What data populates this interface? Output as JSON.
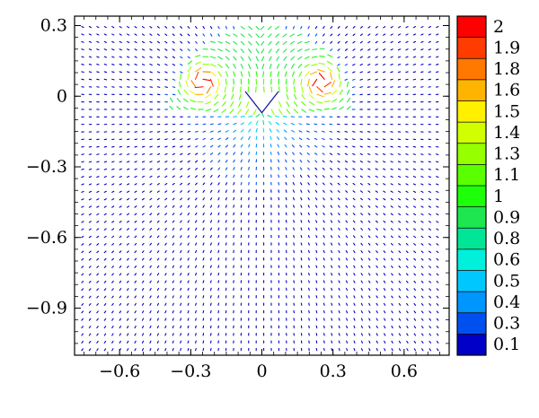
{
  "chart_data": {
    "type": "quiver",
    "title": "",
    "xlabel": "",
    "ylabel": "",
    "xlim": [
      -0.79,
      0.79
    ],
    "ylim": [
      -1.1,
      0.34
    ],
    "grid": false,
    "x_ticks": [
      -0.6,
      -0.3,
      0,
      0.3,
      0.6
    ],
    "x_tick_labels": [
      "−0.6",
      "−0.3",
      "0",
      "0.3",
      "0.6"
    ],
    "y_ticks": [
      0.3,
      0,
      -0.3,
      -0.6,
      -0.9
    ],
    "y_tick_labels": [
      "0.3",
      "0",
      "−0.3",
      "−0.6",
      "−0.9"
    ],
    "colorbar": {
      "placement": "right",
      "labels": [
        "2",
        "1.9",
        "1.8",
        "1.6",
        "1.5",
        "1.4",
        "1.3",
        "1.1",
        "1",
        "0.9",
        "0.8",
        "0.6",
        "0.5",
        "0.4",
        "0.3",
        "0.1"
      ],
      "colors": [
        "#ff0000",
        "#ff3c00",
        "#ff7800",
        "#ffb400",
        "#fff000",
        "#d2ff00",
        "#96ff00",
        "#5aff00",
        "#1eff0a",
        "#1ee650",
        "#00e696",
        "#00f0dc",
        "#00c8ff",
        "#0096ff",
        "#0050f0",
        "#0000c8"
      ]
    },
    "field": {
      "description_source": "flow speed magnitude",
      "cusp": {
        "x": 0,
        "y": -0.07
      },
      "wing_tips": [
        {
          "x": -0.25,
          "y": 0.06
        },
        {
          "x": 0.25,
          "y": 0.06
        }
      ],
      "arrows_x_range": [
        -0.76,
        0.76
      ],
      "arrows_y_range": [
        -1.08,
        0.32
      ],
      "max_magnitude": 2,
      "min_magnitude": 0.1
    }
  }
}
